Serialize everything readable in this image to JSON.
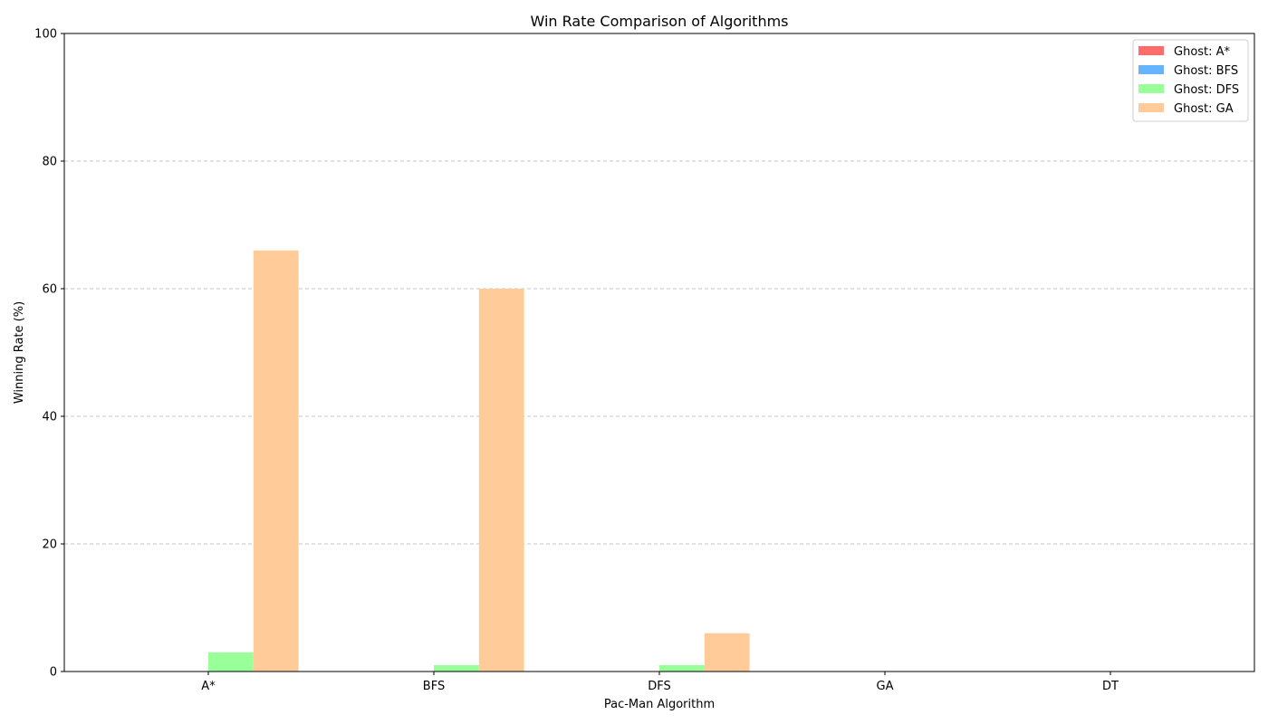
{
  "chart_data": {
    "type": "bar",
    "title": "Win Rate Comparison of Algorithms",
    "xlabel": "Pac-Man Algorithm",
    "ylabel": "Winning Rate (%)",
    "categories": [
      "A*",
      "BFS",
      "DFS",
      "GA",
      "DT"
    ],
    "ylim": [
      0,
      100
    ],
    "yticks": [
      0,
      20,
      40,
      60,
      80,
      100
    ],
    "grid": "y-dashed",
    "legend_position": "top-right",
    "series": [
      {
        "name": "Ghost: A*",
        "color": "#ff6b6b",
        "values": [
          0,
          0,
          0,
          0,
          0
        ]
      },
      {
        "name": "Ghost: BFS",
        "color": "#66b3ff",
        "values": [
          0,
          0,
          0,
          0,
          0
        ]
      },
      {
        "name": "Ghost: DFS",
        "color": "#99ff99",
        "values": [
          3,
          1,
          1,
          0,
          0
        ]
      },
      {
        "name": "Ghost: GA",
        "color": "#ffcc99",
        "values": [
          66,
          60,
          6,
          0,
          0
        ]
      }
    ]
  }
}
